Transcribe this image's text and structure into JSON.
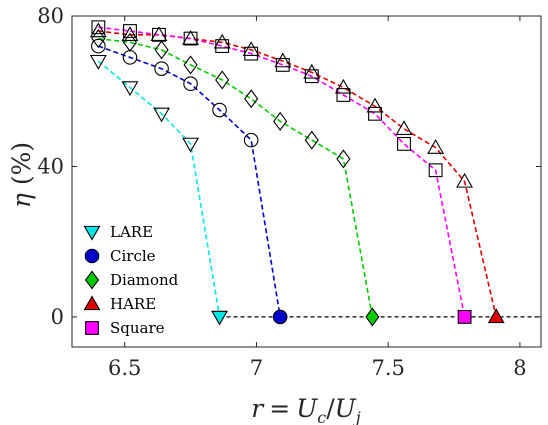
{
  "chart_data": {
    "type": "line",
    "xlabel": "r = U_c/U_j",
    "ylabel": "η (%)",
    "xlim": [
      6.3,
      8.08
    ],
    "ylim": [
      -8,
      80
    ],
    "xticks": [
      6.5,
      7,
      7.5,
      8
    ],
    "xtick_labels": [
      "6.5",
      "7",
      "7.5",
      "8"
    ],
    "yticks": [
      0,
      40,
      80
    ],
    "ytick_labels": [
      "0",
      "40",
      "80"
    ],
    "grid": false,
    "legend_position": "lower-left",
    "baseline": {
      "y": 0,
      "x_range": [
        6.86,
        8.08
      ]
    },
    "series": [
      {
        "name": "LARE",
        "color": "#00e5e5",
        "marker": "triangle-down",
        "x": [
          6.4,
          6.52,
          6.64,
          6.75,
          6.86
        ],
        "y": [
          68,
          61,
          54,
          46,
          0
        ]
      },
      {
        "name": "Circle",
        "color": "#0000cc",
        "marker": "circle",
        "x": [
          6.4,
          6.52,
          6.64,
          6.75,
          6.86,
          6.98,
          7.09
        ],
        "y": [
          72,
          69,
          66,
          62,
          55,
          47,
          0
        ]
      },
      {
        "name": "Diamond",
        "color": "#00cc00",
        "marker": "diamond",
        "x": [
          6.4,
          6.52,
          6.64,
          6.75,
          6.87,
          6.98,
          7.09,
          7.21,
          7.33,
          7.44
        ],
        "y": [
          74,
          73,
          71,
          67,
          63,
          58,
          52,
          47,
          42,
          0
        ]
      },
      {
        "name": "HARE",
        "color": "#e00000",
        "marker": "triangle-up",
        "x": [
          6.4,
          6.52,
          6.63,
          6.75,
          6.87,
          6.98,
          7.1,
          7.21,
          7.33,
          7.45,
          7.56,
          7.68,
          7.79,
          7.91
        ],
        "y": [
          76,
          75,
          75,
          74,
          73,
          71,
          68,
          65,
          61,
          56,
          50,
          45,
          36,
          0
        ]
      },
      {
        "name": "Square",
        "color": "#ff00ff",
        "marker": "square",
        "x": [
          6.4,
          6.52,
          6.63,
          6.75,
          6.87,
          6.98,
          7.1,
          7.21,
          7.33,
          7.45,
          7.56,
          7.68,
          7.79
        ],
        "y": [
          77,
          76,
          75,
          74,
          72,
          70,
          67,
          64,
          59,
          54,
          46,
          39,
          0
        ]
      }
    ]
  }
}
